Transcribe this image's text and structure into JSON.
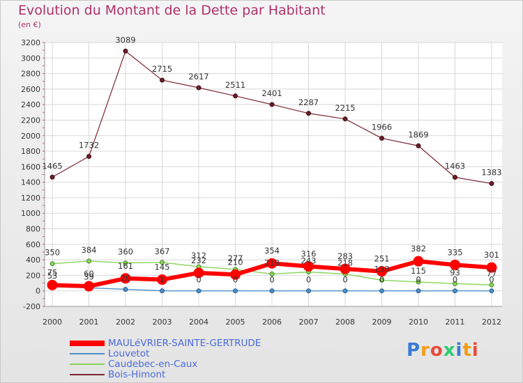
{
  "title": "Evolution du Montant de la Dette par Habitant",
  "subtitle": "(en €)",
  "logo": "Proxiti",
  "chart_data": {
    "type": "line",
    "title": "Evolution du Montant de la Dette par Habitant",
    "subtitle": "(en €)",
    "xlabel": "",
    "ylabel": "",
    "categories": [
      "2000",
      "2001",
      "2002",
      "2003",
      "2004",
      "2005",
      "2006",
      "2007",
      "2008",
      "2009",
      "2010",
      "2011",
      "2012"
    ],
    "ylim": [
      -200,
      3200
    ],
    "yticks": [
      -200,
      0,
      200,
      400,
      600,
      800,
      1000,
      1200,
      1400,
      1600,
      1800,
      2000,
      2200,
      2400,
      2600,
      2800,
      3000,
      3200
    ],
    "grid": true,
    "legend_position": "bottom-left",
    "series": [
      {
        "name": "MAULéVRIER-SAINTE-GERTRUDE",
        "color": "#ff0000",
        "values": [
          75,
          60,
          161,
          145,
          232,
          210,
          354,
          316,
          283,
          251,
          382,
          335,
          301
        ]
      },
      {
        "name": "Louvetot",
        "color": "#4a90c8",
        "values": [
          53,
          39,
          20,
          1,
          0,
          0,
          0,
          0,
          0,
          0,
          0,
          0,
          0
        ]
      },
      {
        "name": "Caudebec-en-Caux",
        "color": "#88d35a",
        "values": [
          350,
          384,
          360,
          367,
          312,
          277,
          218,
          243,
          218,
          138,
          115,
          93,
          77
        ]
      },
      {
        "name": "Bois-Himont",
        "color": "#7a2530",
        "values": [
          1465,
          1732,
          3089,
          2715,
          2617,
          2511,
          2401,
          2287,
          2215,
          1966,
          1869,
          1463,
          1383
        ]
      }
    ]
  }
}
